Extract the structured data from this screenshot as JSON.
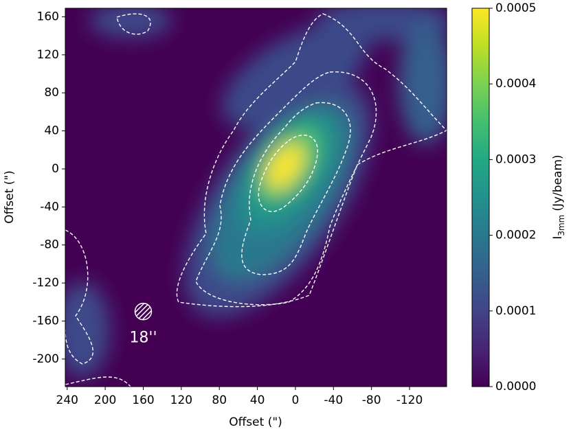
{
  "chart_data": {
    "type": "heatmap",
    "x_label": "Offset (\")",
    "y_label": "Offset (\")",
    "xlim": [
      242,
      -159
    ],
    "ylim": [
      -229,
      169
    ],
    "xticks": [
      240,
      200,
      160,
      120,
      80,
      40,
      0,
      -40,
      -80,
      -120
    ],
    "yticks": [
      160,
      120,
      80,
      40,
      0,
      -40,
      -80,
      -120,
      -160,
      -200
    ],
    "annotation": {
      "text": "18''",
      "x": 160,
      "y": -150
    },
    "colorbar": {
      "label": "I",
      "label_subscript": "3mm",
      "label_unit": "(Jy/beam)",
      "colormap": "viridis",
      "lim": [
        0,
        0.0005
      ],
      "ticks": [
        {
          "value": 0,
          "label": "0.0000"
        },
        {
          "value": 0.0001,
          "label": "0.0001"
        },
        {
          "value": 0.0002,
          "label": "0.0002"
        },
        {
          "value": 0.0003,
          "label": "0.0003"
        },
        {
          "value": 0.0004,
          "label": "0.0004"
        },
        {
          "value": 0.0005,
          "label": "0.0005"
        }
      ]
    }
  }
}
